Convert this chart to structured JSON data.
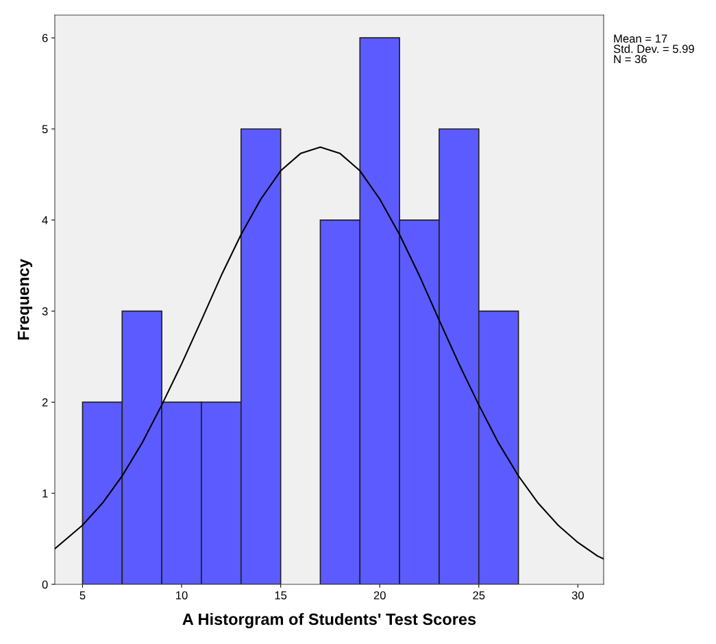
{
  "chart_data": {
    "type": "histogram",
    "xlabel": "A Historgram of Students' Test Scores",
    "ylabel": "Frequency",
    "bins": [
      5,
      7,
      9,
      11,
      13,
      15,
      17,
      19,
      21,
      23,
      25,
      27
    ],
    "values": [
      2,
      3,
      2,
      2,
      5,
      0,
      4,
      6,
      4,
      5,
      3
    ],
    "color": "#5b5bff",
    "series": [
      {
        "type": "line",
        "color": "#000000",
        "x": [
          3.6,
          5,
          6,
          7,
          8,
          9,
          10,
          11,
          12,
          13,
          14,
          15,
          16,
          17,
          18,
          19,
          20,
          21,
          22,
          23,
          24,
          25,
          26,
          27,
          28,
          29,
          30,
          31,
          31.3
        ],
        "values": [
          0.39,
          0.65,
          0.89,
          1.19,
          1.55,
          1.97,
          2.42,
          2.9,
          3.39,
          3.84,
          4.23,
          4.54,
          4.73,
          4.8,
          4.73,
          4.54,
          4.23,
          3.84,
          3.39,
          2.9,
          2.42,
          1.97,
          1.55,
          1.19,
          0.89,
          0.65,
          0.46,
          0.31,
          0.28
        ]
      }
    ],
    "xlim": [
      3.6,
      31.3
    ],
    "xticks": [
      5,
      10,
      15,
      20,
      25,
      30
    ],
    "ylim": [
      0,
      6.25
    ],
    "yticks": [
      0,
      1,
      2,
      3,
      4,
      5,
      6
    ],
    "grid": false,
    "legend": false,
    "annotations": [
      "Mean = 17\nStd. Dev. = 5.99\nN = 36"
    ]
  }
}
